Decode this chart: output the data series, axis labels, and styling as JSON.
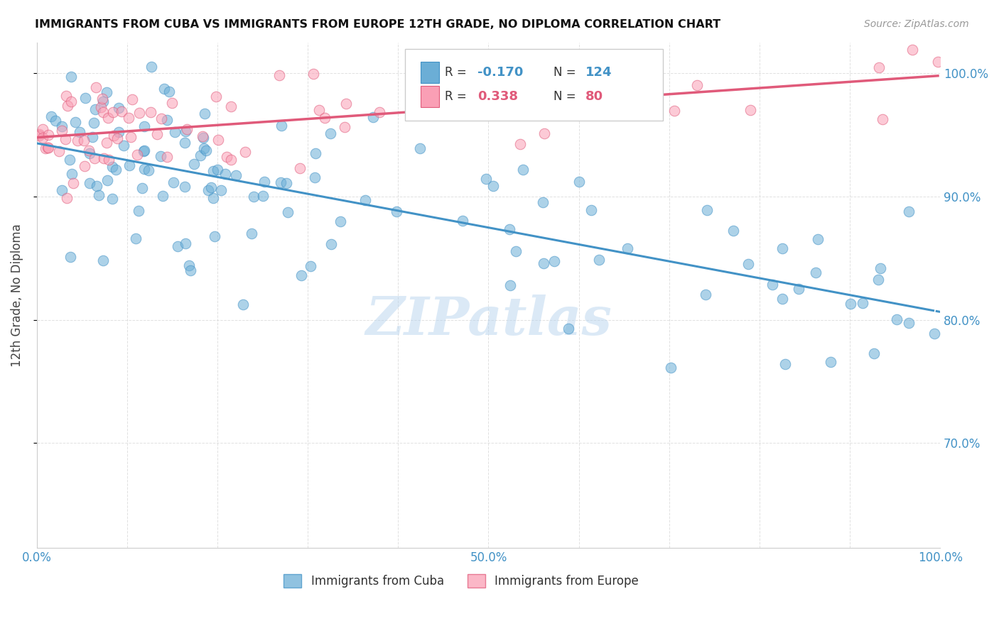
{
  "title": "IMMIGRANTS FROM CUBA VS IMMIGRANTS FROM EUROPE 12TH GRADE, NO DIPLOMA CORRELATION CHART",
  "source": "Source: ZipAtlas.com",
  "ylabel": "12th Grade, No Diploma",
  "legend_label_cuba": "Immigrants from Cuba",
  "legend_label_europe": "Immigrants from Europe",
  "R_cuba": -0.17,
  "N_cuba": 124,
  "R_europe": 0.338,
  "N_europe": 80,
  "color_cuba": "#6baed6",
  "color_europe": "#fa9fb5",
  "color_trend_cuba": "#4292c6",
  "color_trend_europe": "#e05a7a",
  "color_axis_labels": "#4292c6",
  "xmin": 0.0,
  "xmax": 1.0,
  "ymin": 0.615,
  "ymax": 1.025,
  "right_yticks": [
    0.7,
    0.8,
    0.9,
    1.0
  ],
  "watermark": "ZIPatlas",
  "background_color": "#ffffff",
  "grid_color": "#dddddd"
}
